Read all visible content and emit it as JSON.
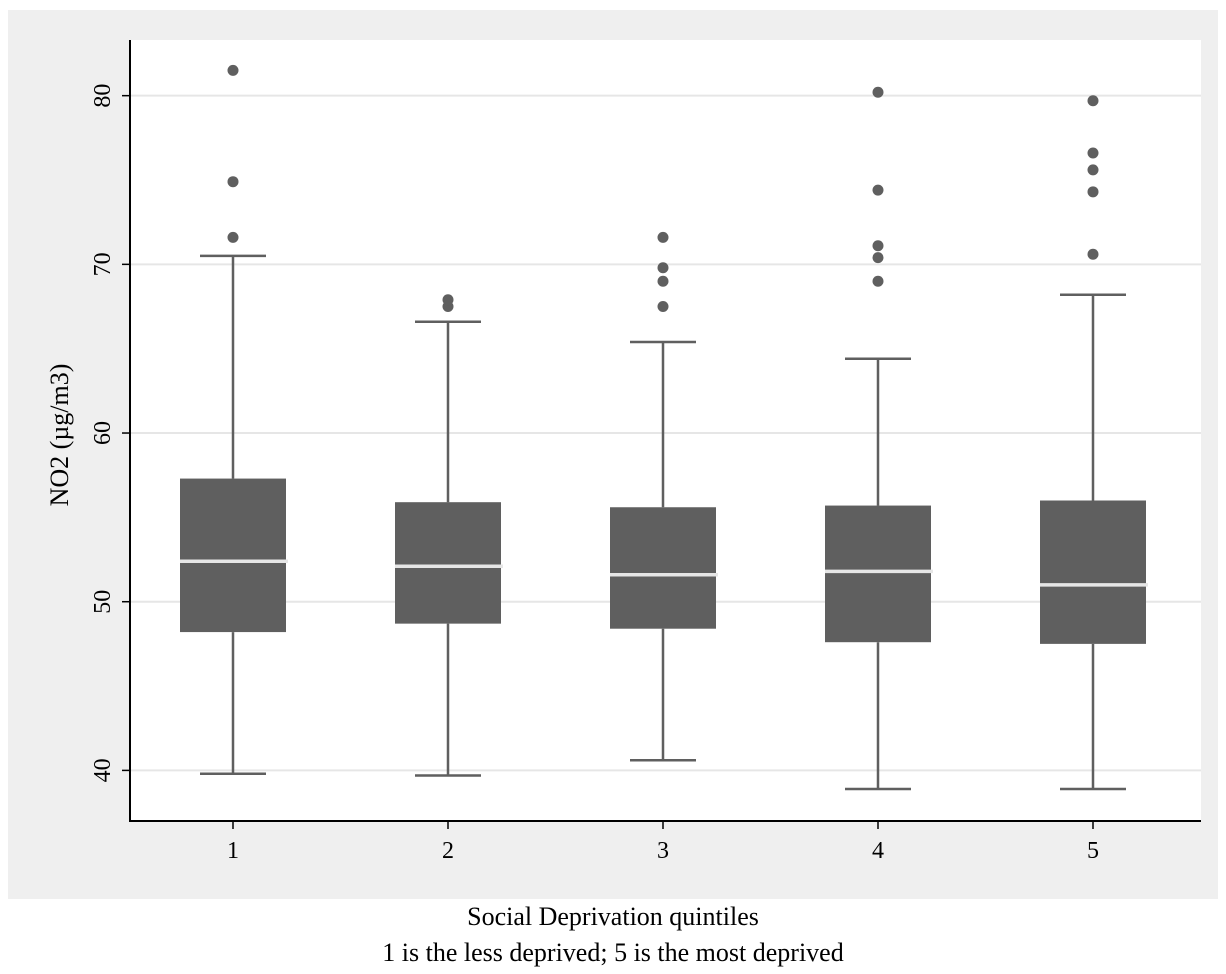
{
  "chart_data": {
    "type": "box",
    "categories": [
      "1",
      "2",
      "3",
      "4",
      "5"
    ],
    "ylabel": "NO2 (µg/m3)",
    "xlabel_lines": [
      "Social Deprivation quintiles",
      "1 is the less deprived; 5 is the most deprived"
    ],
    "ylim": [
      37,
      83.3
    ],
    "yticks": [
      {
        "value": 40,
        "label": "40"
      },
      {
        "value": 50,
        "label": "50"
      },
      {
        "value": 60,
        "label": "60"
      },
      {
        "value": 70,
        "label": "70"
      },
      {
        "value": 80,
        "label": "80"
      }
    ],
    "grid": true,
    "colors": {
      "box": "#5f5f5f",
      "median": "#e6e6e6",
      "outer_background": "#efefef",
      "plot_background": "#ffffff",
      "grid": "#e6e6e6"
    },
    "boxes": [
      {
        "category": "1",
        "whisker_low": 39.8,
        "q1": 48.2,
        "median": 52.4,
        "q3": 57.3,
        "whisker_high": 70.5,
        "outliers": [
          71.6,
          74.9,
          81.5
        ]
      },
      {
        "category": "2",
        "whisker_low": 39.7,
        "q1": 48.7,
        "median": 52.1,
        "q3": 55.9,
        "whisker_high": 66.6,
        "outliers": [
          67.5,
          67.9
        ]
      },
      {
        "category": "3",
        "whisker_low": 40.6,
        "q1": 48.4,
        "median": 51.6,
        "q3": 55.6,
        "whisker_high": 65.4,
        "outliers": [
          67.5,
          69.0,
          69.8,
          71.6
        ]
      },
      {
        "category": "4",
        "whisker_low": 38.9,
        "q1": 47.6,
        "median": 51.8,
        "q3": 55.7,
        "whisker_high": 64.4,
        "outliers": [
          69.0,
          70.4,
          71.1,
          74.4,
          80.2
        ]
      },
      {
        "category": "5",
        "whisker_low": 38.9,
        "q1": 47.5,
        "median": 51.0,
        "q3": 56.0,
        "whisker_high": 68.2,
        "outliers": [
          70.6,
          74.3,
          75.6,
          76.6,
          79.7
        ]
      }
    ]
  }
}
